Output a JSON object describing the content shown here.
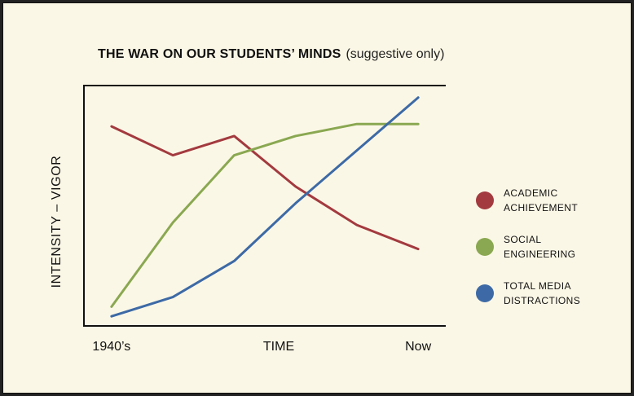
{
  "chart_data": {
    "type": "line",
    "title": "THE WAR ON OUR STUDENTS’ MINDS",
    "subtitle": "(suggestive only)",
    "xlabel": "TIME",
    "ylabel": "INTENSITY  –  VIGOR",
    "x_tick_labels": [
      {
        "x": 0,
        "label": "1940’s"
      },
      {
        "x": 5,
        "label": "Now"
      }
    ],
    "x": [
      0,
      1,
      2,
      3,
      4,
      5
    ],
    "xlim": [
      -0.45,
      5.45
    ],
    "ylim": [
      0,
      100
    ],
    "grid": false,
    "legend_position": "right",
    "y_ticks_shown": false,
    "series": [
      {
        "name": "ACADEMIC ACHIEVEMENT",
        "color": "#a33a3f",
        "values": [
          83,
          71,
          79,
          58,
          42,
          32
        ]
      },
      {
        "name": "SOCIAL ENGINEERING",
        "color": "#8aa851",
        "values": [
          8,
          43,
          71,
          79,
          84,
          84
        ]
      },
      {
        "name": "TOTAL MEDIA DISTRACTIONS",
        "color": "#3d6aa6",
        "values": [
          4,
          12,
          27,
          51,
          73,
          95
        ]
      }
    ]
  }
}
